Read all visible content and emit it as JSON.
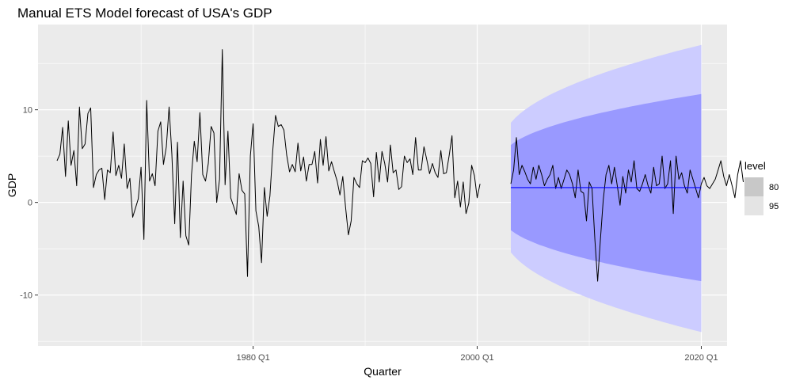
{
  "chart_data": {
    "type": "line",
    "title": "Manual ETS Model forecast of USA's GDP",
    "xlabel": "Quarter",
    "ylabel": "GDP",
    "xlim": [
      1960.8,
      2022.3
    ],
    "ylim": [
      -15.5,
      19.2
    ],
    "x_ticks": [
      {
        "value": 1980.0,
        "label": "1980 Q1"
      },
      {
        "value": 2000.0,
        "label": "2000 Q1"
      },
      {
        "value": 2020.0,
        "label": "2020 Q1"
      }
    ],
    "x_minor_ticks": [
      1970.0,
      1990.0,
      2010.0
    ],
    "y_ticks": [
      {
        "value": 10,
        "label": "10"
      },
      {
        "value": 0,
        "label": "0"
      },
      {
        "value": -10,
        "label": "-10"
      }
    ],
    "y_minor_ticks": [
      -15,
      -5,
      5,
      15
    ],
    "grid": true,
    "legend": {
      "title": "level",
      "position": "right",
      "items": [
        {
          "label": "80",
          "color": "#c8c8c8"
        },
        {
          "label": "95",
          "color": "#e4e4e4"
        }
      ]
    },
    "colors": {
      "panel": "#ebebeb",
      "grid": "#ffffff",
      "line": "#000000",
      "forecast_mean": "#0000ff",
      "band_80": "#9999ff",
      "band_95": "#ccccff"
    },
    "series": [
      {
        "x_start": 1962.5,
        "x_step": 0.25,
        "values": [
          4.5,
          5.2,
          8.1,
          2.8,
          8.8,
          4.0,
          5.6,
          1.8,
          10.3,
          5.8,
          6.3,
          9.6,
          10.2,
          1.6,
          3.0,
          3.5,
          3.7,
          0.3,
          3.5,
          3.2,
          7.6,
          2.9,
          4.0,
          2.6,
          6.3,
          1.5,
          2.6,
          -1.6,
          -0.6,
          0.4,
          3.8,
          -4.0,
          11.0,
          2.3,
          3.1,
          1.8,
          7.7,
          8.7,
          4.1,
          6.0,
          10.3,
          5.2,
          -2.3,
          6.5,
          -3.8,
          2.3,
          -3.6,
          -4.6,
          3.0,
          6.6,
          4.4,
          9.7,
          3.0,
          2.3,
          4.2,
          8.2,
          7.5,
          0.0,
          2.5,
          16.5,
          1.9,
          7.7,
          0.5,
          -0.4,
          -1.3,
          3.1,
          1.3,
          0.9,
          -8.0,
          5.0,
          8.5,
          -0.9,
          -2.6,
          -6.5,
          1.6,
          -1.5,
          0.7,
          5.6,
          9.4,
          8.2,
          8.4,
          7.8,
          5.1,
          3.3,
          4.1,
          3.3,
          6.4,
          3.4,
          4.9,
          2.3,
          4.1,
          4.1,
          5.5,
          2.1,
          6.8,
          4.0,
          7.1,
          3.4,
          4.4,
          3.3,
          2.3,
          0.8,
          2.8,
          -0.5,
          -3.5,
          -2.0,
          2.7,
          2.0,
          1.6,
          4.5,
          4.3,
          4.8,
          4.2,
          0.6,
          5.4,
          2.2,
          5.5,
          4.2,
          2.2,
          6.2,
          3.2,
          3.5,
          1.4,
          1.7,
          5.0,
          4.3,
          4.7,
          3.0,
          7.0,
          3.5,
          3.5,
          6.0,
          4.6,
          3.1,
          4.2,
          3.2,
          2.7,
          5.6,
          3.1,
          3.2,
          5.1,
          7.2,
          0.5,
          2.3,
          -0.5,
          2.2,
          -1.2,
          -0.1,
          4.0,
          2.9,
          0.5,
          2.0
        ],
        "label": ""
      },
      {
        "x_start": 2003.0,
        "x_step": 0.25,
        "values": [
          2.0,
          3.5,
          7.0,
          3.0,
          4.0,
          3.3,
          2.5,
          2.0,
          3.8,
          2.5,
          4.0,
          3.0,
          1.8,
          2.5,
          3.0,
          4.0,
          1.5,
          2.7,
          1.5,
          2.5,
          3.5,
          3.0,
          2.0,
          0.5,
          3.5,
          1.2,
          1.0,
          -2.0,
          2.2,
          1.5,
          -4.0,
          -8.5,
          -4.0,
          0.3,
          3.0,
          4.0,
          2.0,
          3.8,
          1.8,
          -0.3,
          2.8,
          1.0,
          3.5,
          2.2,
          4.5,
          1.5,
          1.2,
          2.0,
          3.0,
          1.8,
          1.0,
          3.8,
          1.8,
          2.0,
          5.0,
          1.5,
          2.0,
          4.5,
          -1.2,
          5.0,
          2.5,
          3.2,
          1.8,
          1.0,
          3.5,
          2.5,
          1.5,
          0.5,
          2.0,
          2.7,
          1.8,
          1.5,
          2.0,
          2.5,
          3.5,
          4.5,
          2.8,
          1.8,
          3.0,
          1.8,
          0.5,
          3.0,
          4.5,
          2.2
        ],
        "label": ""
      }
    ],
    "forecast": {
      "x_start": 2003.0,
      "x_end": 2020.0,
      "mean": 1.6,
      "lo80_start": -3.0,
      "lo80_end": -8.5,
      "hi80_start": 6.2,
      "hi80_end": 11.7,
      "lo95_start": -5.4,
      "lo95_end": -14.0,
      "hi95_start": 8.6,
      "hi95_end": 17.0
    }
  }
}
